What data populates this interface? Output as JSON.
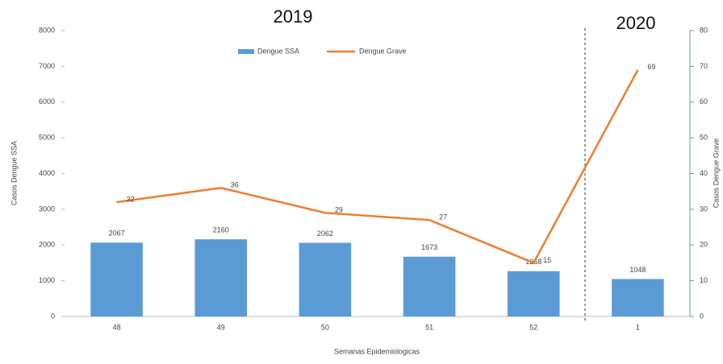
{
  "chart_data": {
    "type": "bar",
    "annotations": [
      "2019",
      "2020"
    ],
    "xlabel": "Semanas Epidemiologicas",
    "ylabel": "Casos Dengue SSA",
    "y2label": "Casos Dengue Grave",
    "categories": [
      "48",
      "49",
      "50",
      "51",
      "52",
      "1"
    ],
    "series": [
      {
        "name": "Dengue SSA",
        "type": "bar",
        "color": "#5b9bd5",
        "values": [
          2067,
          2160,
          2062,
          1673,
          1268,
          1048
        ]
      },
      {
        "name": "Dengue Grave",
        "type": "line",
        "axis": "y2",
        "color": "#ed7d31",
        "values": [
          32,
          36,
          29,
          27,
          15,
          69
        ]
      }
    ],
    "ylim": [
      0,
      8000
    ],
    "yticks": [
      0,
      1000,
      2000,
      3000,
      4000,
      5000,
      6000,
      7000,
      8000
    ],
    "y2lim": [
      0,
      80
    ],
    "y2ticks": [
      0,
      10,
      20,
      30,
      40,
      50,
      60,
      70,
      80
    ],
    "legend": "top",
    "grid": false
  }
}
